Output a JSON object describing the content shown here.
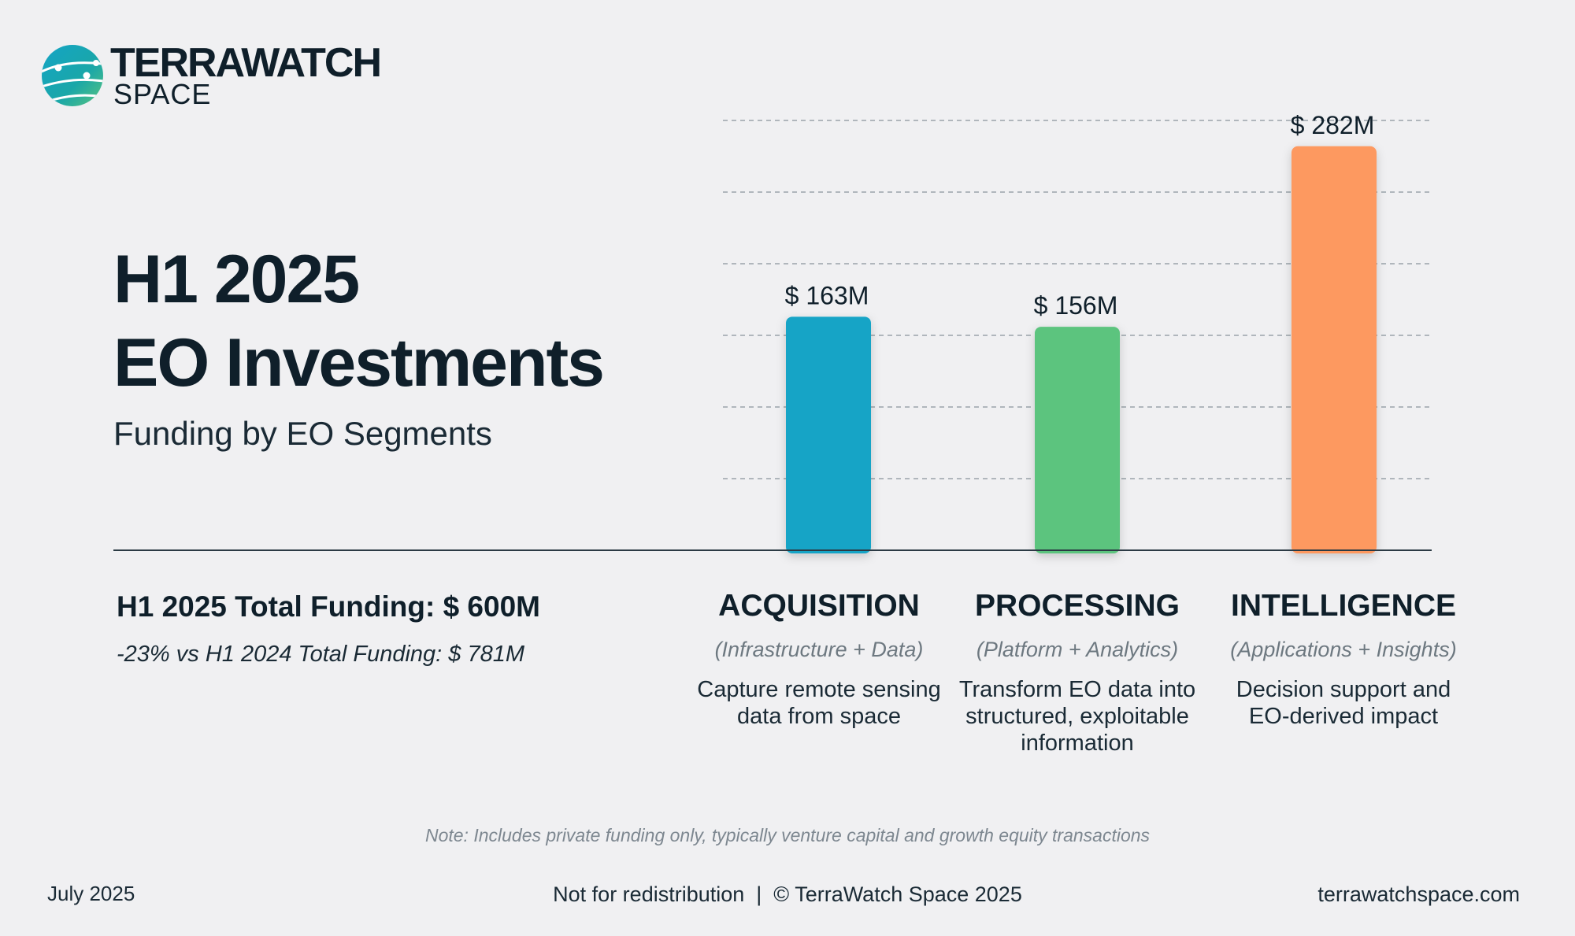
{
  "brand": {
    "name_line1": "TERRAWATCH",
    "name_line2": "SPACE",
    "colors": {
      "teal": "#14a4c6",
      "green": "#5bc47e"
    }
  },
  "title": {
    "line1": "H1 2025",
    "line2": "EO Investments",
    "subtitle": "Funding by EO Segments"
  },
  "summary": {
    "total": "H1 2025 Total Funding: $ 600M",
    "comparison": "-23% vs H1 2024 Total Funding: $ 781M"
  },
  "chart_data": {
    "type": "bar",
    "categories": [
      "ACQUISITION",
      "PROCESSING",
      "INTELLIGENCE"
    ],
    "values": [
      163,
      156,
      282
    ],
    "value_labels": [
      "$ 163M",
      "$ 156M",
      "$ 282M"
    ],
    "unit": "$M",
    "ylim": [
      0,
      300
    ],
    "grid": true,
    "colors": [
      "#14a4c6",
      "#5bc47e",
      "#fd9960"
    ]
  },
  "segments": [
    {
      "name": "ACQUISITION",
      "sub": "(Infrastructure + Data)",
      "desc": "Capture remote sensing data from space"
    },
    {
      "name": "PROCESSING",
      "sub": "(Platform + Analytics)",
      "desc": "Transform EO data into structured, exploitable information"
    },
    {
      "name": "INTELLIGENCE",
      "sub": "(Applications + Insights)",
      "desc": "Decision support and EO-derived impact"
    }
  ],
  "footer": {
    "note": "Note: Includes private funding only, typically venture capital and growth equity transactions",
    "date": "July 2025",
    "copyright": "Not for redistribution  |  © TerraWatch Space 2025",
    "website": "terrawatchspace.com"
  }
}
